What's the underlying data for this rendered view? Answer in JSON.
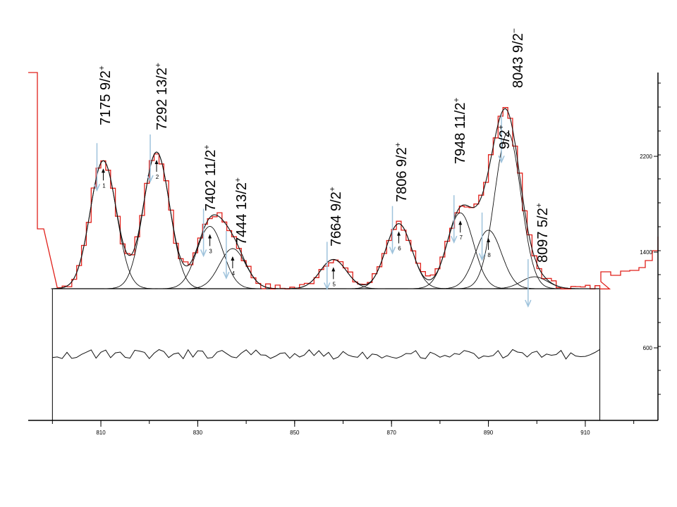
{
  "chart_data": {
    "type": "line",
    "colors": {
      "histogram": "#e0201a",
      "fit": "#111111",
      "arrow": "#9fc3dc",
      "axis": "#000000"
    },
    "x_axis": {
      "range": [
        795,
        925
      ],
      "ticks": [
        810,
        830,
        850,
        870,
        890,
        910
      ],
      "tick_labels": [
        "810",
        "830",
        "850",
        "870",
        "890",
        "910"
      ]
    },
    "right_axis": {
      "tick_labels": [
        "2200",
        "1400",
        "600"
      ]
    },
    "fit_range": [
      800,
      913
    ],
    "peaks": [
      {
        "id": "1",
        "label": "7175  9/2",
        "parity": "+",
        "x": 810.5,
        "height": 1180
      },
      {
        "id": "2",
        "label": "7292  13/2",
        "parity": "+",
        "x": 821.5,
        "height": 1260
      },
      {
        "id": "3",
        "label": "7402  11/2",
        "parity": "+",
        "x": 832.5,
        "height": 575
      },
      {
        "id": "4",
        "label": "7444  13/2",
        "parity": "+",
        "x": 837.2,
        "height": 370
      },
      {
        "id": "5",
        "label": "7664  9/2",
        "parity": "+",
        "x": 858.0,
        "height": 270
      },
      {
        "id": "6",
        "label": "7806  9/2",
        "parity": "+",
        "x": 871.5,
        "height": 600
      },
      {
        "id": "7",
        "label": "7948  11/2",
        "parity": "+",
        "x": 884.2,
        "height": 700
      },
      {
        "id": "8",
        "label": "9/2",
        "parity": "+",
        "x": 890.0,
        "height": 540
      },
      {
        "id": "",
        "label": "8043  9/2",
        "parity": "−",
        "x": 894.0,
        "height": 1440
      },
      {
        "id": "",
        "label": "8097  5/2",
        "parity": "+",
        "x": 899.5,
        "height": 110
      }
    ]
  }
}
